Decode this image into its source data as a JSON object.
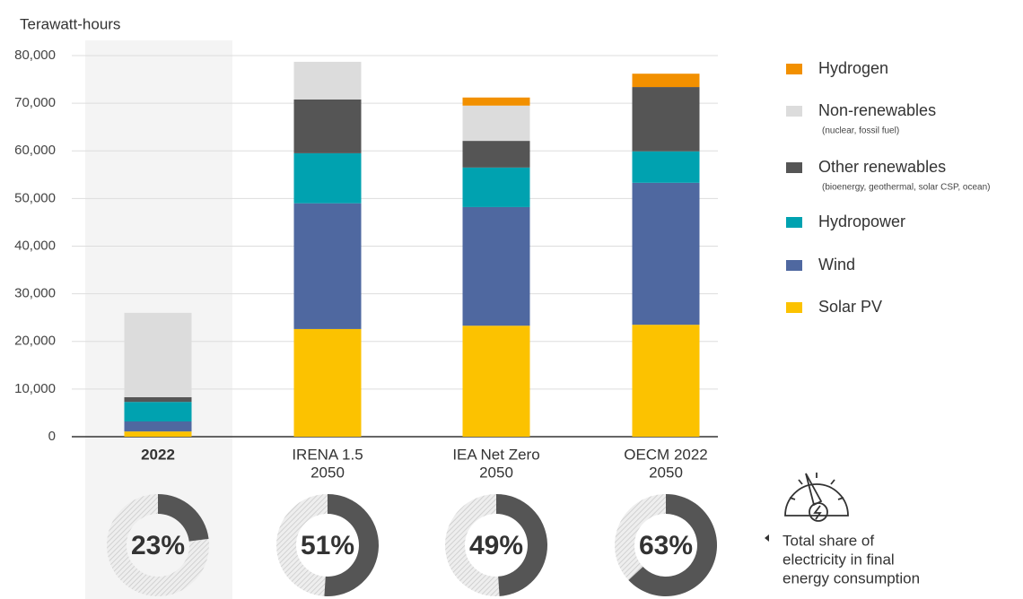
{
  "chart_data": {
    "type": "stacked_bar",
    "y_label": "Terawatt-hours",
    "categories": [
      [
        "2022"
      ],
      [
        "IRENA 1.5",
        "2050"
      ],
      [
        "IEA Net Zero",
        "2050"
      ],
      [
        "OECM 2022",
        "2050"
      ]
    ],
    "series": [
      {
        "name": "Solar PV",
        "color": "#fcc200",
        "values": [
          1100,
          22600,
          23300,
          23500
        ]
      },
      {
        "name": "Wind",
        "color": "#4f68a0",
        "values": [
          2100,
          26400,
          24900,
          29800
        ]
      },
      {
        "name": "Hydropower",
        "color": "#00a2b0",
        "values": [
          4100,
          10500,
          8300,
          6600
        ]
      },
      {
        "name": "Other renewables",
        "sublabel": "(bioenergy, geothermal, solar CSP, ocean)",
        "color": "#555555",
        "values": [
          1000,
          11300,
          5600,
          13500
        ]
      },
      {
        "name": "Non-renewables",
        "sublabel": "(nuclear, fossil fuel)",
        "color": "#dcdcdc",
        "values": [
          17700,
          7900,
          7400,
          0
        ]
      },
      {
        "name": "Hydrogen",
        "color": "#f29000",
        "values": [
          0,
          0,
          1700,
          2800
        ]
      }
    ],
    "ylim": [
      0,
      80000
    ],
    "yticks": [
      0,
      {
        "value": 10000,
        "label": "10,000"
      },
      {
        "value": 20000,
        "label": "20,000"
      },
      {
        "value": 30000,
        "label": "30,000"
      },
      {
        "value": 40000,
        "label": "40,000"
      },
      {
        "value": 50000,
        "label": "50,000"
      },
      {
        "value": 60000,
        "label": "60,000"
      },
      {
        "value": 70000,
        "label": "70,000"
      },
      {
        "value": 80000,
        "label": "80,000"
      }
    ],
    "grid": true,
    "electricity_share": {
      "values": [
        23,
        51,
        49,
        63
      ],
      "value_labels": [
        "23%",
        "51%",
        "49%",
        "63%"
      ],
      "color": "#555555"
    },
    "annotation": [
      "Total share of",
      "electricity in final",
      "energy consumption"
    ]
  }
}
